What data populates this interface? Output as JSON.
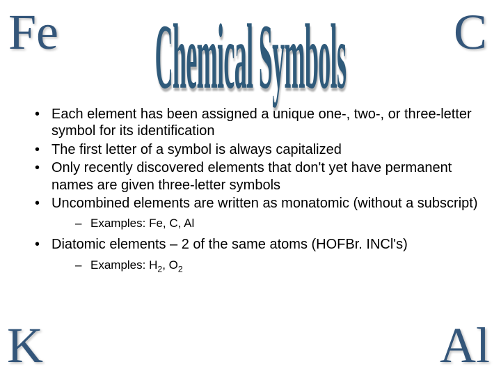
{
  "corners": {
    "top_left": "Fe",
    "top_right": "C",
    "bottom_left": "K",
    "bottom_right": "Al"
  },
  "title": "Chemical Symbols",
  "colors": {
    "corner_text": "#34567a",
    "title_text": "#2f5a7a",
    "body_text": "#000000",
    "background": "#ffffff"
  },
  "typography": {
    "corner_font": "Times New Roman",
    "corner_size_pt": 54,
    "title_font": "Comic Sans MS",
    "title_size_pt": 44,
    "body_font": "Arial",
    "body_size_pt": 15,
    "sub_size_pt": 13
  },
  "bullets": [
    "Each element has been assigned a unique one-, two-, or three-letter symbol for its identification",
    "The first letter of a symbol is always capitalized",
    "Only recently discovered elements that don't yet have permanent names are given three-letter symbols",
    "Uncombined elements are written as monatomic (without a subscript)"
  ],
  "sub_examples_1_label": "Examples:  Fe, C, Al",
  "bullet_diatomic": "Diatomic elements – 2 of the same atoms (HOFBr. INCl's)",
  "sub_examples_2_prefix": "Examples:  H",
  "sub_examples_2_sub1": "2",
  "sub_examples_2_mid": ", O",
  "sub_examples_2_sub2": "2"
}
